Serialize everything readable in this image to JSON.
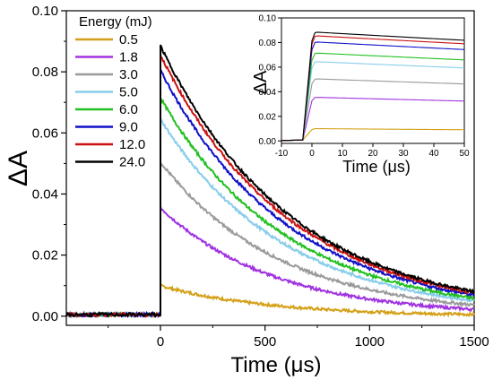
{
  "chart_data": {
    "type": "line",
    "xlabel": "Time (μs)",
    "ylabel": "ΔA",
    "xlim": [
      -450,
      1500
    ],
    "ylim": [
      -0.003,
      0.1
    ],
    "x_ticks": [
      0,
      500,
      1000,
      1500
    ],
    "y_ticks": [
      0.0,
      0.02,
      0.04,
      0.06,
      0.08,
      0.1
    ],
    "x_tick_labels": [
      "0",
      "500",
      "1000",
      "1500"
    ],
    "y_tick_labels": [
      "0.00",
      "0.02",
      "0.04",
      "0.06",
      "0.08",
      "0.10"
    ],
    "grid": false,
    "legend": {
      "title": "Energy (mJ)",
      "position": "top-left"
    },
    "series": [
      {
        "name": "0.5",
        "color": "#d4a017",
        "peak": 0.01,
        "tau": 520
      },
      {
        "name": "1.8",
        "color": "#a033e0",
        "peak": 0.0355,
        "tau": 540
      },
      {
        "name": "3.0",
        "color": "#9a9a9a",
        "peak": 0.0505,
        "tau": 570
      },
      {
        "name": "5.0",
        "color": "#87cdea",
        "peak": 0.0645,
        "tau": 590
      },
      {
        "name": "6.0",
        "color": "#22c022",
        "peak": 0.0715,
        "tau": 600
      },
      {
        "name": "9.0",
        "color": "#1010c8",
        "peak": 0.0805,
        "tau": 610
      },
      {
        "name": "12.0",
        "color": "#cc1111",
        "peak": 0.0855,
        "tau": 620
      },
      {
        "name": "24.0",
        "color": "#000000",
        "peak": 0.0885,
        "tau": 625
      }
    ],
    "inset": {
      "xlabel": "Time (μs)",
      "ylabel": "ΔA",
      "xlim": [
        -10,
        50
      ],
      "ylim": [
        -0.002,
        0.1
      ],
      "x_ticks": [
        -10,
        0,
        10,
        20,
        30,
        40,
        50
      ],
      "y_ticks": [
        0.0,
        0.02,
        0.04,
        0.06,
        0.08,
        0.1
      ],
      "x_tick_labels": [
        "-10",
        "0",
        "10",
        "20",
        "30",
        "40",
        "50"
      ],
      "y_tick_labels": [
        "0.00",
        "0.02",
        "0.04",
        "0.06",
        "0.08",
        "0.10"
      ]
    }
  }
}
